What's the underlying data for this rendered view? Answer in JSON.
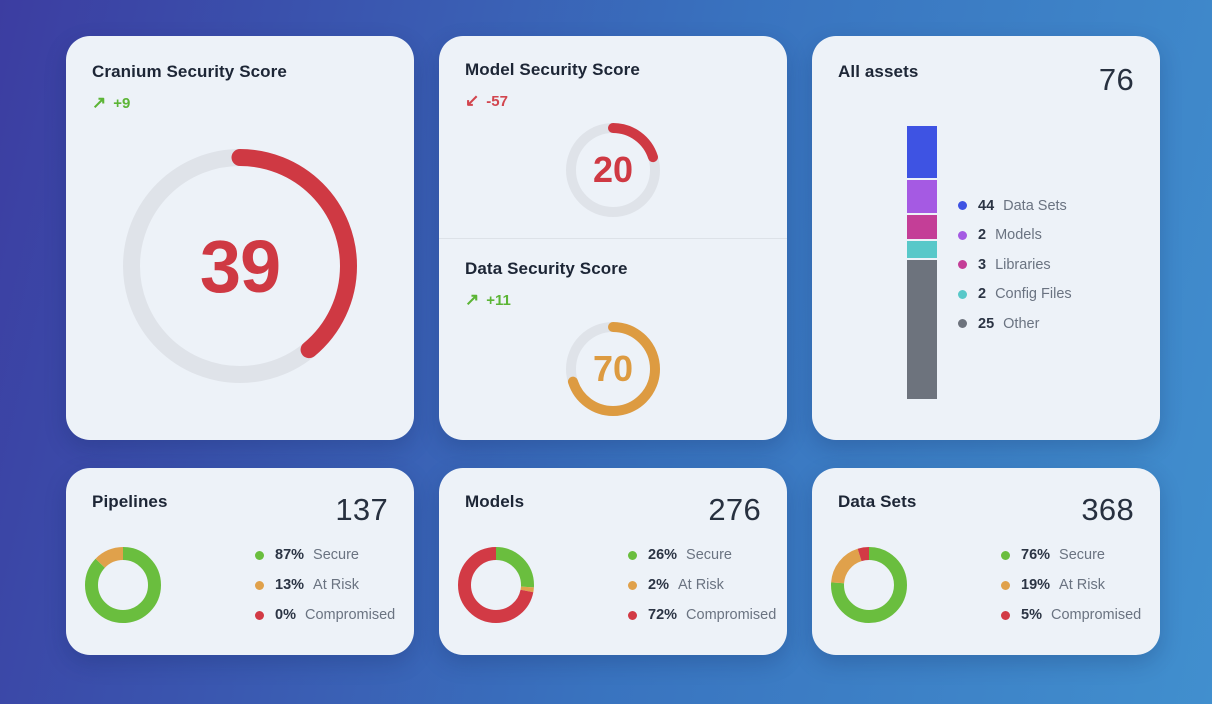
{
  "theme": {
    "delta_green": "#5cb536",
    "delta_red": "#d2454e",
    "chart_green": "#6abe3e",
    "chart_orange": "#e0a14b",
    "chart_red": "#d23a45",
    "gauge_red": "#cf3943",
    "gauge_orange": "#dd9b41",
    "track": "#dfe3e9",
    "card_bg": "#edf2f8"
  },
  "chart_data": [
    {
      "type": "gauge",
      "title": "Cranium Security Score",
      "value": 39,
      "max": 100,
      "delta": 9,
      "color": "#cf3943"
    },
    {
      "type": "gauge",
      "title": "Model Security Score",
      "value": 20,
      "max": 100,
      "delta": -57,
      "color": "#cf3943"
    },
    {
      "type": "gauge",
      "title": "Data Security Score",
      "value": 70,
      "max": 100,
      "delta": 11,
      "color": "#dd9b41"
    },
    {
      "type": "bar",
      "title": "All assets",
      "stacked": true,
      "total": 76,
      "categories": [
        "Data Sets",
        "Models",
        "Libraries",
        "Config Files",
        "Other"
      ],
      "values": [
        44,
        2,
        3,
        2,
        25
      ],
      "colors": [
        "#3e53e3",
        "#a55ae3",
        "#c43e97",
        "#58c8c9",
        "#6d737d"
      ]
    },
    {
      "type": "pie",
      "title": "Pipelines",
      "total": 137,
      "unit": "%",
      "categories": [
        "Secure",
        "At Risk",
        "Compromised"
      ],
      "values": [
        87,
        13,
        0
      ],
      "colors": [
        "#6abe3e",
        "#e0a14b",
        "#d23a45"
      ],
      "legend_position": "right"
    },
    {
      "type": "pie",
      "title": "Models",
      "total": 276,
      "unit": "%",
      "categories": [
        "Secure",
        "At Risk",
        "Compromised"
      ],
      "values": [
        26,
        2,
        72
      ],
      "colors": [
        "#6abe3e",
        "#e0a14b",
        "#d23a45"
      ],
      "legend_position": "right"
    },
    {
      "type": "pie",
      "title": "Data Sets",
      "total": 368,
      "unit": "%",
      "categories": [
        "Secure",
        "At Risk",
        "Compromised"
      ],
      "values": [
        76,
        19,
        5
      ],
      "colors": [
        "#6abe3e",
        "#e0a14b",
        "#d23a45"
      ],
      "legend_position": "right"
    }
  ],
  "cards": {
    "cranium": {
      "title": "Cranium Security Score",
      "arrow": "↗",
      "delta": "+9",
      "gauge": {
        "value": 39,
        "max": 100,
        "color": "#cf3943"
      }
    },
    "model": {
      "title": "Model Security Score",
      "arrow": "↙",
      "delta": "-57",
      "gauge": {
        "value": 20,
        "max": 100,
        "color": "#cf3943"
      }
    },
    "data": {
      "title": "Data Security Score",
      "arrow": "↗",
      "delta": "+11",
      "gauge": {
        "value": 70,
        "max": 100,
        "color": "#dd9b41"
      }
    },
    "assets": {
      "title": "All assets",
      "total": "76",
      "bar": [
        {
          "color": "#3e53e3",
          "display_pct": 18.5
        },
        {
          "color": "#a55ae3",
          "display_pct": 12
        },
        {
          "color": "#c43e97",
          "display_pct": 8.5
        },
        {
          "color": "#58c8c9",
          "display_pct": 6
        },
        {
          "color": "#6d737d",
          "display_pct": 50
        }
      ],
      "legend": [
        {
          "value": "44",
          "label": "Data Sets",
          "color": "#3e53e3"
        },
        {
          "value": "2",
          "label": "Models",
          "color": "#a55ae3"
        },
        {
          "value": "3",
          "label": "Libraries",
          "color": "#c43e97"
        },
        {
          "value": "2",
          "label": "Config Files",
          "color": "#58c8c9"
        },
        {
          "value": "25",
          "label": "Other",
          "color": "#6d737d"
        }
      ]
    },
    "pipelines": {
      "title": "Pipelines",
      "total": "137",
      "segments": [
        {
          "pct": 87,
          "value_label": "87%",
          "label": "Secure",
          "color": "#6abe3e"
        },
        {
          "pct": 13,
          "value_label": "13%",
          "label": "At Risk",
          "color": "#e0a14b"
        },
        {
          "pct": 0,
          "value_label": "0%",
          "label": "Compromised",
          "color": "#d23a45"
        }
      ]
    },
    "models": {
      "title": "Models",
      "total": "276",
      "segments": [
        {
          "pct": 26,
          "value_label": "26%",
          "label": "Secure",
          "color": "#6abe3e"
        },
        {
          "pct": 2,
          "value_label": "2%",
          "label": "At Risk",
          "color": "#e0a14b"
        },
        {
          "pct": 72,
          "value_label": "72%",
          "label": "Compromised",
          "color": "#d23a45"
        }
      ]
    },
    "datasets": {
      "title": "Data Sets",
      "total": "368",
      "segments": [
        {
          "pct": 76,
          "value_label": "76%",
          "label": "Secure",
          "color": "#6abe3e"
        },
        {
          "pct": 19,
          "value_label": "19%",
          "label": "At Risk",
          "color": "#e0a14b"
        },
        {
          "pct": 5,
          "value_label": "5%",
          "label": "Compromised",
          "color": "#d23a45"
        }
      ]
    }
  }
}
